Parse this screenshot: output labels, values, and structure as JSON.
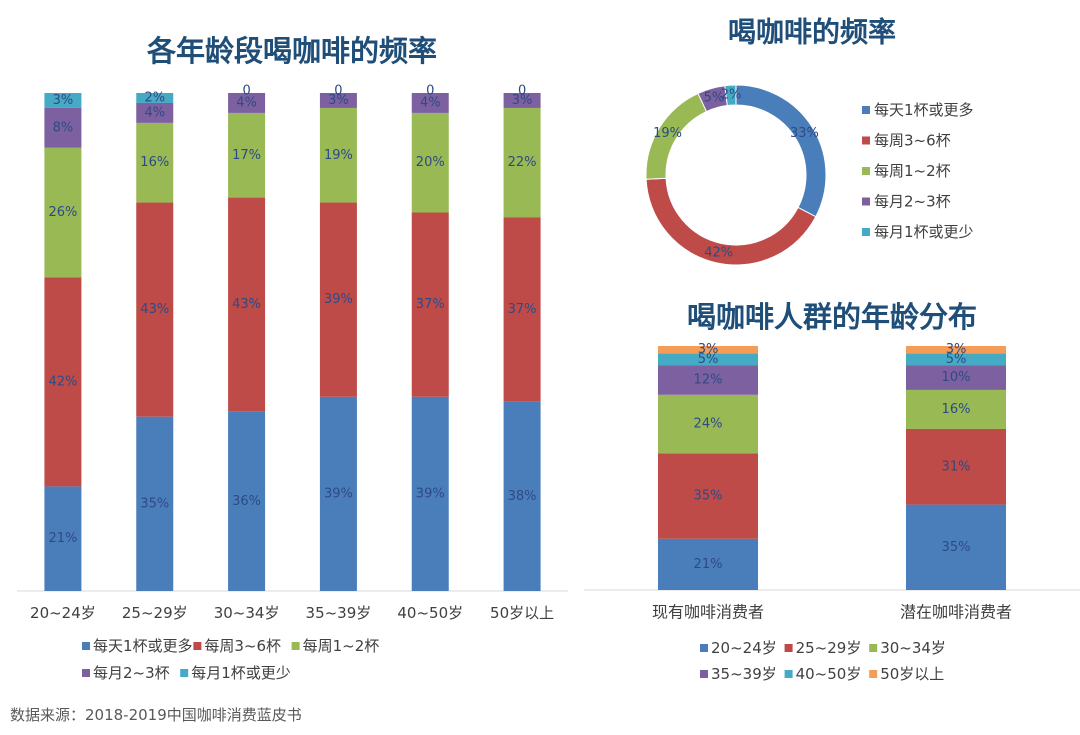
{
  "source": "数据来源：2018-2019中国咖啡消费蓝皮书",
  "colors": {
    "blue": "#4a7ebb",
    "red": "#be4b48",
    "green": "#98b954",
    "purple": "#7d60a0",
    "cyan": "#46aac5",
    "orange": "#f59d56",
    "title": "#1f4e79",
    "label": "#2e4a86",
    "axis_text": "#404040"
  },
  "chart_data": [
    {
      "id": "age-frequency",
      "type": "bar",
      "stacked": true,
      "title": "各年龄段喝咖啡的频率",
      "categories": [
        "20~24岁",
        "25~29岁",
        "30~34岁",
        "35~39岁",
        "40~50岁",
        "50岁以上"
      ],
      "series": [
        {
          "name": "每天1杯或更多",
          "color": "#4a7ebb",
          "values": [
            21,
            35,
            36,
            39,
            39,
            38
          ],
          "labels": [
            "21%",
            "35%",
            "36%",
            "39%",
            "39%",
            "38%"
          ]
        },
        {
          "name": "每周3~6杯",
          "color": "#be4b48",
          "values": [
            42,
            43,
            43,
            39,
            37,
            37
          ],
          "labels": [
            "42%",
            "43%",
            "43%",
            "39%",
            "37%",
            "37%"
          ]
        },
        {
          "name": "每周1~2杯",
          "color": "#98b954",
          "values": [
            26,
            16,
            17,
            19,
            20,
            22
          ],
          "labels": [
            "26%",
            "16%",
            "17%",
            "19%",
            "20%",
            "22%"
          ]
        },
        {
          "name": "每月2~3杯",
          "color": "#7d60a0",
          "values": [
            8,
            4,
            4,
            3,
            4,
            3
          ],
          "labels": [
            "8%",
            "4%",
            "4%",
            "3%",
            "4%",
            "3%"
          ]
        },
        {
          "name": "每月1杯或更少",
          "color": "#46aac5",
          "values": [
            3,
            2,
            0,
            0,
            0,
            0
          ],
          "labels": [
            "3%",
            "2%",
            "0",
            "0",
            "0",
            "0"
          ]
        }
      ],
      "ylim": [
        0,
        100
      ],
      "legend_rows": [
        [
          "每天1杯或更多",
          "每周3~6杯",
          "每周1~2杯"
        ],
        [
          "每月2~3杯",
          "每月1杯或更少"
        ]
      ]
    },
    {
      "id": "overall-frequency",
      "type": "pie",
      "donut": true,
      "title": "喝咖啡的频率",
      "slices": [
        {
          "name": "每天1杯或更多",
          "value": 33,
          "label": "33%",
          "color": "#4a7ebb"
        },
        {
          "name": "每周3~6杯",
          "value": 42,
          "label": "42%",
          "color": "#be4b48"
        },
        {
          "name": "每周1~2杯",
          "value": 19,
          "label": "19%",
          "color": "#98b954"
        },
        {
          "name": "每月2~3杯",
          "value": 5,
          "label": "5%",
          "color": "#7d60a0"
        },
        {
          "name": "每月1杯或更少",
          "value": 2,
          "label": "2%",
          "color": "#46aac5"
        }
      ],
      "legend": [
        "每天1杯或更多",
        "每周3~6杯",
        "每周1~2杯",
        "每月2~3杯",
        "每月1杯或更少"
      ],
      "legend_position": "right"
    },
    {
      "id": "consumer-age",
      "type": "bar",
      "stacked": true,
      "title": "喝咖啡人群的年龄分布",
      "categories": [
        "现有咖啡消费者",
        "潜在咖啡消费者"
      ],
      "series": [
        {
          "name": "20~24岁",
          "color": "#4a7ebb",
          "values": [
            21,
            35
          ],
          "labels": [
            "21%",
            "35%"
          ]
        },
        {
          "name": "25~29岁",
          "color": "#be4b48",
          "values": [
            35,
            31
          ],
          "labels": [
            "35%",
            "31%"
          ]
        },
        {
          "name": "30~34岁",
          "color": "#98b954",
          "values": [
            24,
            16
          ],
          "labels": [
            "24%",
            "16%"
          ]
        },
        {
          "name": "35~39岁",
          "color": "#7d60a0",
          "values": [
            12,
            10
          ],
          "labels": [
            "12%",
            "10%"
          ]
        },
        {
          "name": "40~50岁",
          "color": "#46aac5",
          "values": [
            5,
            5
          ],
          "labels": [
            "5%",
            "5%"
          ]
        },
        {
          "name": "50岁以上",
          "color": "#f59d56",
          "values": [
            3,
            3
          ],
          "labels": [
            "3%",
            "3%"
          ]
        }
      ],
      "ylim": [
        0,
        100
      ],
      "legend_rows": [
        [
          "20~24岁",
          "25~29岁",
          "30~34岁"
        ],
        [
          "35~39岁",
          "40~50岁",
          "50岁以上"
        ]
      ]
    }
  ]
}
